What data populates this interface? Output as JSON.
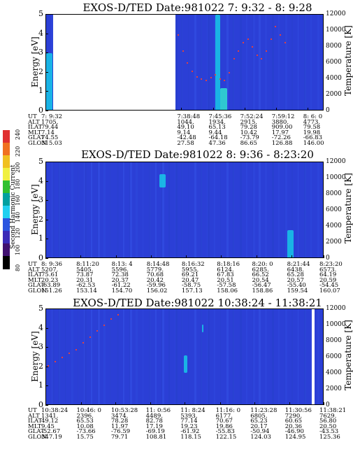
{
  "colorbar": {
    "label": "Second Harmonic Current",
    "ticks": [
      "240",
      "220",
      "200",
      "180",
      "160",
      "140",
      "120",
      "100",
      "80"
    ],
    "colors": [
      "#e03030",
      "#f07020",
      "#f0c020",
      "#f0f040",
      "#30c030",
      "#00a0a0",
      "#20d0f0",
      "#2a55e0",
      "#3a2ab8",
      "#401070",
      "#000000"
    ]
  },
  "panels": [
    {
      "title": "EXOS-D/TED   Date:981022  7: 9:32 - 8: 9:28",
      "ylabel": "Energy [eV]",
      "y2label": "Temperature [K]",
      "yticks": [
        "5",
        "4",
        "3",
        "2",
        "1",
        "0"
      ],
      "y2ticks": [
        "12000",
        "10000",
        "8000",
        "6000",
        "4000",
        "2000",
        "0"
      ],
      "rows": {
        "labels": [
          "UT",
          "ALT",
          "ILAT",
          "MLT",
          "GLAT",
          "GLON"
        ],
        "columns": [
          [
            "7: 9:32",
            "1705.",
            "79.44",
            "7.14",
            "74.55",
            "315.03"
          ],
          [
            "7:38:48",
            "1044.",
            "49.10",
            "9.14",
            "-42.48",
            "27.58"
          ],
          [
            "7:45:36",
            "1934.",
            "65.13",
            "9.44",
            "-64.18",
            "47.36"
          ],
          [
            "7:52:24",
            "2915.",
            "79.28",
            "10.42",
            "-73.79",
            "86.65"
          ],
          [
            "7:59:12",
            "3880.",
            "909.00",
            "17.97",
            "-72.26",
            "126.88"
          ],
          [
            "8: 6: 0",
            "4773.",
            "79.58",
            "19.98",
            "-66.83",
            "146.00"
          ]
        ]
      }
    },
    {
      "title": "EXOS-D/TED   Date:981022  8: 9:36 - 8:23:20",
      "ylabel": "Energy [eV]",
      "y2label": "Temperature [K]",
      "yticks": [
        "5",
        "4",
        "3",
        "2",
        "1",
        "0"
      ],
      "y2ticks": [
        "12000",
        "10000",
        "8000",
        "6000",
        "4000",
        "2000",
        "0"
      ],
      "rows": {
        "labels": [
          "UT",
          "ALT",
          "ILAT",
          "MLT",
          "GLAT",
          "GLON"
        ],
        "columns": [
          [
            "8: 9:36",
            "5207.",
            "75.61",
            "20.23",
            "-63.89",
            "151.26"
          ],
          [
            "8:11:20",
            "5405.",
            "73.87",
            "20.31",
            "-62.53",
            "153.14"
          ],
          [
            "8:13: 4",
            "5596.",
            "72.38",
            "20.37",
            "-61.22",
            "154.70"
          ],
          [
            "8:14:48",
            "5779.",
            "70.68",
            "20.42",
            "-59.96",
            "156.02"
          ],
          [
            "8:16:32",
            "5955.",
            "69.21",
            "20.47",
            "-58.75",
            "157.13"
          ],
          [
            "8:18:16",
            "6124.",
            "67.83",
            "20.51",
            "-57.58",
            "158.06"
          ],
          [
            "8:20: 0",
            "6285.",
            "66.52",
            "20.54",
            "-56.47",
            "158.86"
          ],
          [
            "8:21:44",
            "6438.",
            "65.28",
            "20.57",
            "-55.40",
            "159.54"
          ],
          [
            "8:23:20",
            "6573.",
            "64.19",
            "20.59",
            "-54.45",
            "160.07"
          ]
        ]
      }
    },
    {
      "title": "EXOS-D/TED   Date:981022  10:38:24 - 11:38:21",
      "ylabel": "Energy [eV]",
      "y2label": "Temperature [K]",
      "yticks": [
        "5",
        "4",
        "3",
        "2",
        "1",
        "0"
      ],
      "y2ticks": [
        "12000",
        "10000",
        "8000",
        "6000",
        "4000",
        "2000",
        "0"
      ],
      "rows": {
        "labels": [
          "UT",
          "ALT",
          "ILAT",
          "MLT",
          "GLAT",
          "GLON"
        ],
        "columns": [
          [
            "10:38:24",
            "1341.",
            "49.12",
            "9.45",
            "-52.67",
            "347.19"
          ],
          [
            "10:46: 0",
            "2396.",
            "65.53",
            "10.08",
            "-73.66",
            "15.75"
          ],
          [
            "10:53:28",
            "3474.",
            "78.28",
            "11.97",
            "-76.59",
            "79.71"
          ],
          [
            "11: 0:56",
            "4489.",
            "82.78",
            "17.19",
            "-69.19",
            "108.81"
          ],
          [
            "11: 8:24",
            "5393.",
            "77.14",
            "19.23",
            "-61.92",
            "118.15"
          ],
          [
            "11:16: 0",
            "6177.",
            "70.67",
            "19.86",
            "-55.83",
            "122.15"
          ],
          [
            "11:23:28",
            "6805.",
            "65.23",
            "20.17",
            "-50.94",
            "124.03"
          ],
          [
            "11:30:56",
            "7290.",
            "60.65",
            "20.36",
            "-46.90",
            "124.95"
          ],
          [
            "11:38:21",
            "7629.",
            "56.80",
            "20.50",
            "-43.53",
            "125.36"
          ]
        ]
      }
    }
  ],
  "chart_data": [
    {
      "type": "heatmap",
      "title": "EXOS-D/TED   Date:981022  7: 9:32 - 8: 9:28",
      "ylabel": "Energy [eV]",
      "y2label": "Temperature [K]",
      "ylim": [
        0,
        5
      ],
      "y2lim": [
        0,
        12000
      ],
      "x_tick_labels": [
        "7: 9:32",
        "7:38:48",
        "7:45:36",
        "7:52:24",
        "7:59:12",
        "8: 6: 0"
      ],
      "x_minutes": [
        0,
        29.3,
        36.1,
        42.9,
        49.7,
        56.5
      ],
      "x_range_minutes": [
        0,
        60
      ],
      "data_gap_minutes": [
        1.5,
        27.8
      ],
      "temperature_points": [
        {
          "t": 28.5,
          "T": 9500
        },
        {
          "t": 29.5,
          "T": 7500
        },
        {
          "t": 30.5,
          "T": 6000
        },
        {
          "t": 31.5,
          "T": 5000
        },
        {
          "t": 32.5,
          "T": 4300
        },
        {
          "t": 33.5,
          "T": 4000
        },
        {
          "t": 34.5,
          "T": 3800
        },
        {
          "t": 35.5,
          "T": 4200
        },
        {
          "t": 36.5,
          "T": 4500
        },
        {
          "t": 37.5,
          "T": 4000
        },
        {
          "t": 38.5,
          "T": 3800
        },
        {
          "t": 39.5,
          "T": 4800
        },
        {
          "t": 40.5,
          "T": 6500
        },
        {
          "t": 41.5,
          "T": 7500
        },
        {
          "t": 42.5,
          "T": 8500
        },
        {
          "t": 43.5,
          "T": 9000
        },
        {
          "t": 44.5,
          "T": 8000
        },
        {
          "t": 45.5,
          "T": 7000
        },
        {
          "t": 46.5,
          "T": 6500
        },
        {
          "t": 47.5,
          "T": 7500
        },
        {
          "t": 48.5,
          "T": 9000
        },
        {
          "t": 49.5,
          "T": 10500
        },
        {
          "t": 50.5,
          "T": 9500
        },
        {
          "t": 51.5,
          "T": 8500
        }
      ],
      "features": [
        {
          "t_start": 0,
          "t_end": 1.3,
          "e_low": 0,
          "e_high": 3.0,
          "level": "high"
        },
        {
          "t_start": 36.5,
          "t_end": 37.5,
          "e_low": 0,
          "e_high": 5.0,
          "level": "high"
        },
        {
          "t_start": 37.5,
          "t_end": 39.0,
          "e_low": 0,
          "e_high": 1.2,
          "level": "very-high"
        }
      ]
    },
    {
      "type": "heatmap",
      "title": "EXOS-D/TED   Date:981022  8: 9:36 - 8:23:20",
      "ylabel": "Energy [eV]",
      "y2label": "Temperature [K]",
      "ylim": [
        0,
        5
      ],
      "y2lim": [
        0,
        12000
      ],
      "x_tick_labels": [
        "8: 9:36",
        "8:11:20",
        "8:13: 4",
        "8:14:48",
        "8:16:32",
        "8:18:16",
        "8:20: 0",
        "8:21:44",
        "8:23:20"
      ],
      "x_minutes": [
        0,
        1.73,
        3.47,
        5.2,
        6.93,
        8.67,
        10.4,
        12.13,
        13.73
      ],
      "x_range_minutes": [
        0,
        13.73
      ],
      "features": [
        {
          "t_start": 5.6,
          "t_end": 5.9,
          "e_low": 3.7,
          "e_high": 4.4,
          "level": "high"
        },
        {
          "t_start": 11.9,
          "t_end": 12.2,
          "e_low": 0,
          "e_high": 1.5,
          "level": "high"
        }
      ]
    },
    {
      "type": "heatmap",
      "title": "EXOS-D/TED   Date:981022  10:38:24 - 11:38:21",
      "ylabel": "Energy [eV]",
      "y2label": "Temperature [K]",
      "ylim": [
        0,
        5
      ],
      "y2lim": [
        0,
        12000
      ],
      "x_tick_labels": [
        "10:38:24",
        "10:46: 0",
        "10:53:28",
        "11: 0:56",
        "11: 8:24",
        "11:16: 0",
        "11:23:28",
        "11:30:56",
        "11:38:21"
      ],
      "x_minutes": [
        0,
        7.6,
        15.07,
        22.53,
        30.0,
        37.6,
        45.07,
        52.53,
        59.95
      ],
      "x_range_minutes": [
        0,
        59.95
      ],
      "data_gap_minutes": [
        57.2,
        57.9
      ],
      "temperature_points": [
        {
          "t": 0.5,
          "T": 5000
        },
        {
          "t": 2,
          "T": 5500
        },
        {
          "t": 3.5,
          "T": 6000
        },
        {
          "t": 5,
          "T": 6500
        },
        {
          "t": 6.5,
          "T": 7000
        },
        {
          "t": 8,
          "T": 7800
        },
        {
          "t": 9.5,
          "T": 8500
        },
        {
          "t": 11,
          "T": 9300
        },
        {
          "t": 12.5,
          "T": 10000
        },
        {
          "t": 14,
          "T": 10800
        },
        {
          "t": 15.5,
          "T": 11300
        }
      ],
      "features": [
        {
          "t_start": 29.6,
          "t_end": 30.4,
          "e_low": 1.7,
          "e_high": 2.6,
          "level": "high"
        },
        {
          "t_start": 33.6,
          "t_end": 33.9,
          "e_low": 3.8,
          "e_high": 4.2,
          "level": "high"
        }
      ]
    }
  ]
}
